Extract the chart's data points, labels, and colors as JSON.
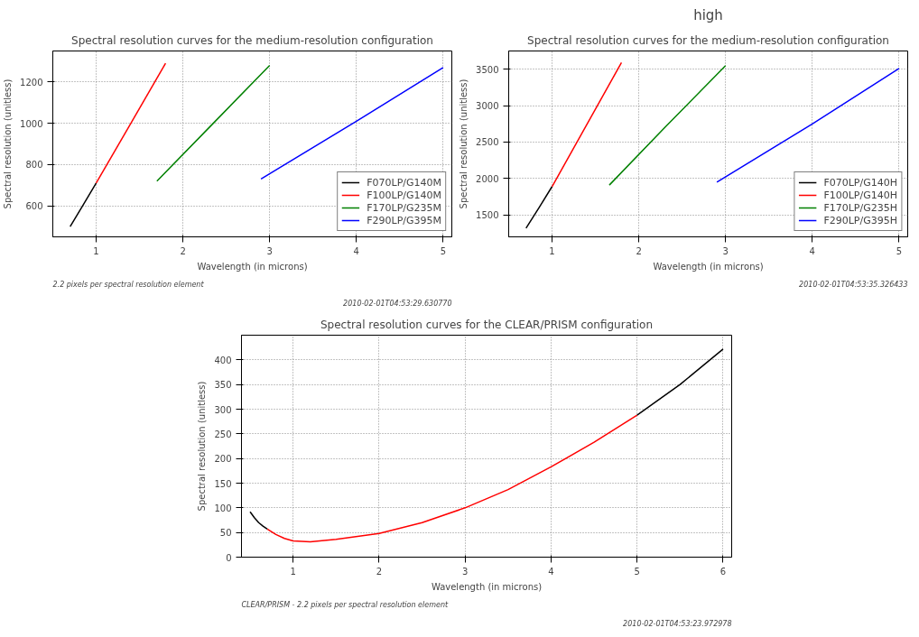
{
  "chart_data": [
    {
      "type": "line",
      "title": "Spectral resolution curves for the medium-resolution configuration",
      "xlabel": "Wavelength (in microns)",
      "ylabel": "Spectral resolution (unitless)",
      "annotations": [
        "2.2 pixels per spectral resolution element",
        "2010-02-01T04:53:29.630770"
      ],
      "xlim": [
        0.5,
        5.1
      ],
      "ylim": [
        450,
        1350
      ],
      "xticks": [
        1,
        2,
        3,
        4,
        5
      ],
      "yticks": [
        600,
        800,
        1000,
        1200
      ],
      "grid": true,
      "legend": "bottom right",
      "line_style": "solid",
      "series": [
        {
          "name": "F070LP/G140M",
          "color": "#000000",
          "x": [
            0.7,
            0.85,
            1.0
          ],
          "values": [
            500,
            605,
            710
          ]
        },
        {
          "name": "F100LP/G140M",
          "color": "#ff0000",
          "x": [
            1.0,
            1.4,
            1.8
          ],
          "values": [
            710,
            1000,
            1290
          ]
        },
        {
          "name": "F170LP/G235M",
          "color": "#008000",
          "x": [
            1.7,
            2.35,
            3.0
          ],
          "values": [
            720,
            1000,
            1280
          ]
        },
        {
          "name": "F290LP/G395M",
          "color": "#0000ff",
          "x": [
            2.9,
            4.0,
            5.0
          ],
          "values": [
            730,
            1010,
            1270
          ]
        }
      ]
    },
    {
      "type": "line",
      "title": "Spectral resolution curves for the medium-resolution configuration",
      "xlabel": "Wavelength (in microns)",
      "ylabel": "Spectral resolution (unitless)",
      "annotations": [
        "high",
        "2010-02-01T04:53:35.326433"
      ],
      "xlim": [
        0.5,
        5.1
      ],
      "ylim": [
        1200,
        3750
      ],
      "xticks": [
        1,
        2,
        3,
        4,
        5
      ],
      "yticks": [
        1500,
        2000,
        2500,
        3000,
        3500
      ],
      "grid": true,
      "legend": "bottom right",
      "line_style": "solid",
      "series": [
        {
          "name": "F070LP/G140H",
          "color": "#000000",
          "x": [
            0.7,
            0.85,
            1.0
          ],
          "values": [
            1320,
            1600,
            1890
          ]
        },
        {
          "name": "F100LP/G140H",
          "color": "#ff0000",
          "x": [
            1.0,
            1.4,
            1.8
          ],
          "values": [
            1890,
            2740,
            3590
          ]
        },
        {
          "name": "F170LP/G235H",
          "color": "#008000",
          "x": [
            1.66,
            2.3,
            3.0
          ],
          "values": [
            1910,
            2700,
            3550
          ]
        },
        {
          "name": "F290LP/G395H",
          "color": "#0000ff",
          "x": [
            2.9,
            4.0,
            5.0
          ],
          "values": [
            1950,
            2750,
            3510
          ]
        }
      ]
    },
    {
      "type": "line",
      "title": "Spectral resolution curves for the CLEAR/PRISM configuration",
      "xlabel": "Wavelength (in microns)",
      "ylabel": "Spectral resolution (unitless)",
      "annotations": [
        "CLEAR/PRISM - 2.2 pixels per spectral resolution element",
        "2010-02-01T04:53:23.972978"
      ],
      "xlim": [
        0.4,
        6.1
      ],
      "ylim": [
        0,
        450
      ],
      "xticks": [
        1,
        2,
        3,
        4,
        5,
        6
      ],
      "yticks": [
        0,
        50,
        100,
        150,
        200,
        250,
        300,
        350,
        400
      ],
      "grid": true,
      "line_style": "solid",
      "series": [
        {
          "color": "#000000",
          "x": [
            0.5,
            0.55,
            0.6,
            0.65,
            0.7
          ],
          "values": [
            92,
            80,
            70,
            63,
            57
          ]
        },
        {
          "color": "#ff0000",
          "x": [
            0.7,
            0.8,
            0.9,
            1.0,
            1.2,
            1.5,
            2.0,
            2.5,
            3.0,
            3.5,
            4.0,
            4.5,
            5.0
          ],
          "values": [
            57,
            46,
            38,
            33,
            31,
            36,
            48,
            70,
            100,
            137,
            183,
            233,
            288
          ]
        },
        {
          "color": "#000000",
          "x": [
            5.0,
            5.5,
            6.0
          ],
          "values": [
            288,
            350,
            422
          ]
        }
      ]
    }
  ]
}
